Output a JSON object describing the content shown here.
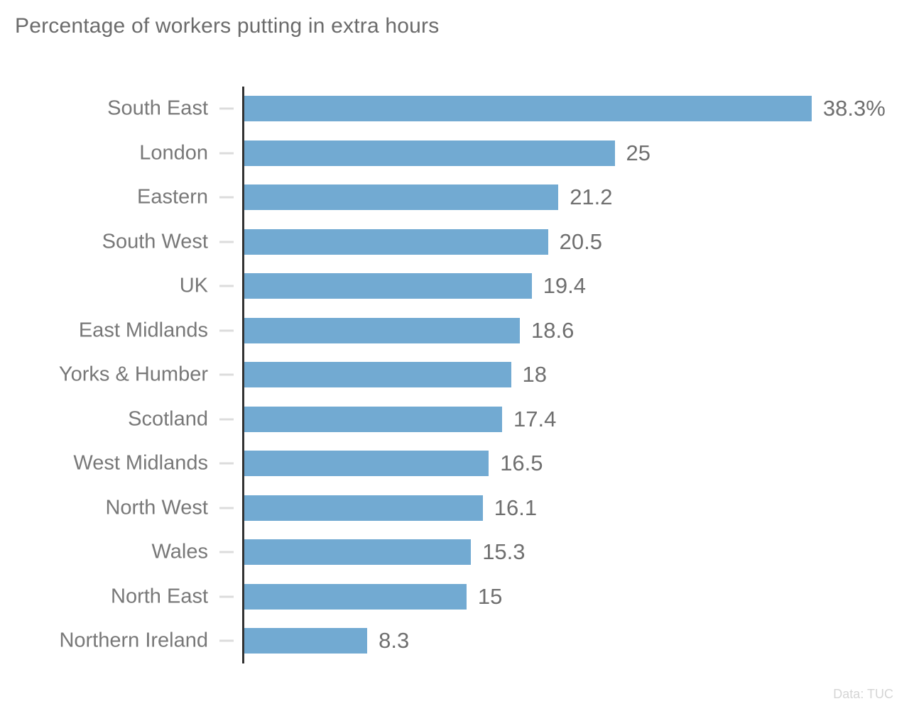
{
  "title": "Percentage of workers putting in extra hours",
  "footer": {
    "source_label": "Data: TUC"
  },
  "colors": {
    "bar": "#72aad2",
    "axis_line": "#323232",
    "tick": "#dcdcdc",
    "category_label": "#787878",
    "value_label": "#6f6f6f",
    "title_text": "#6b6b6b",
    "footer_text": "#d5d5d5",
    "background": "#ffffff"
  },
  "chart_data": {
    "type": "bar",
    "orientation": "horizontal",
    "title": "Percentage of workers putting in extra hours",
    "categories": [
      "South East",
      "London",
      "Eastern",
      "South West",
      "UK",
      "East Midlands",
      "Yorks & Humber",
      "Scotland",
      "West Midlands",
      "North West",
      "Wales",
      "North East",
      "Northern Ireland"
    ],
    "values": [
      38.3,
      25,
      21.2,
      20.5,
      19.4,
      18.6,
      18,
      17.4,
      16.5,
      16.1,
      15.3,
      15,
      8.3
    ],
    "value_labels": [
      "38.3%",
      "25",
      "21.2",
      "20.5",
      "19.4",
      "18.6",
      "18",
      "17.4",
      "16.5",
      "16.1",
      "15.3",
      "15",
      "8.3"
    ],
    "xlabel": "",
    "ylabel": "",
    "xlim": [
      0,
      38.3
    ],
    "grid": false,
    "legend": false,
    "value_labels_position": "right-of-bar",
    "source": "Data: TUC"
  }
}
